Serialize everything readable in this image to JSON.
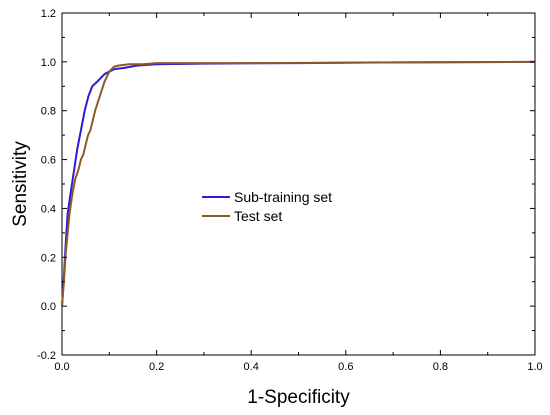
{
  "chart_data": {
    "type": "line",
    "title": "",
    "xlabel": "1-Specificity",
    "ylabel": "Sensitivity",
    "xlim": [
      0.0,
      1.0
    ],
    "ylim": [
      -0.2,
      1.2
    ],
    "xticks": [
      "0.0",
      "0.2",
      "0.4",
      "0.6",
      "0.8",
      "1.0"
    ],
    "yticks": [
      "-0.2",
      "0.0",
      "0.2",
      "0.4",
      "0.6",
      "0.8",
      "1.0",
      "1.2"
    ],
    "grid": false,
    "legend_position": "center-left",
    "series": [
      {
        "name": "Sub-training set",
        "color": "#2e1ad6",
        "x": [
          0.0,
          0.004,
          0.008,
          0.012,
          0.018,
          0.025,
          0.032,
          0.04,
          0.048,
          0.056,
          0.064,
          0.075,
          0.09,
          0.11,
          0.13,
          0.16,
          0.2,
          0.3,
          0.5,
          0.7,
          1.0
        ],
        "y": [
          0.0,
          0.12,
          0.26,
          0.38,
          0.46,
          0.55,
          0.64,
          0.72,
          0.8,
          0.86,
          0.9,
          0.92,
          0.95,
          0.97,
          0.975,
          0.985,
          0.99,
          0.993,
          0.995,
          0.998,
          1.0
        ]
      },
      {
        "name": "Test set",
        "color": "#8b5a2b",
        "x": [
          0.0,
          0.004,
          0.008,
          0.012,
          0.016,
          0.022,
          0.028,
          0.035,
          0.04,
          0.045,
          0.05,
          0.055,
          0.06,
          0.065,
          0.07,
          0.08,
          0.09,
          0.1,
          0.11,
          0.12,
          0.14,
          0.17,
          0.2,
          0.4,
          1.0
        ],
        "y": [
          0.0,
          0.1,
          0.22,
          0.3,
          0.38,
          0.46,
          0.52,
          0.56,
          0.6,
          0.62,
          0.66,
          0.7,
          0.72,
          0.76,
          0.8,
          0.86,
          0.92,
          0.96,
          0.98,
          0.985,
          0.99,
          0.99,
          0.995,
          0.995,
          1.0
        ]
      }
    ]
  }
}
